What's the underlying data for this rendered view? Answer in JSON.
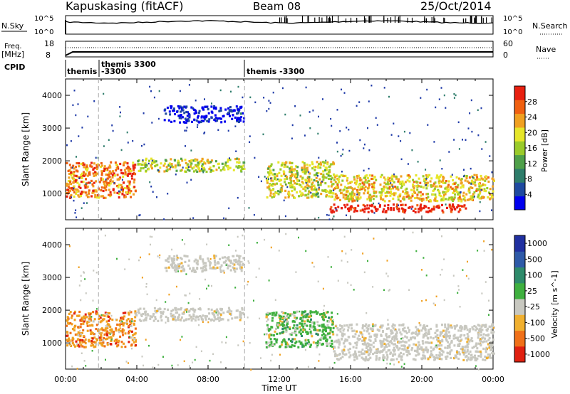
{
  "header": {
    "station": "Kapuskasing (fitACF)",
    "beam": "Beam 08",
    "date": "25/Oct/2014"
  },
  "top_panels": {
    "nsky_label": "N.Sky",
    "nsky_ticks": [
      "10^5",
      "10^0"
    ],
    "nsearch_label": "N.Search",
    "nsearch_ticks": [
      "10^5",
      "10^0"
    ],
    "freq_label": "Freq.",
    "freq_unit": "[MHz]",
    "freq_ticks": [
      "18",
      "8"
    ],
    "nave_label": "Nave",
    "nave_ticks": [
      "60",
      "0"
    ],
    "cpid_label": "CPID",
    "cpid_segments": [
      {
        "start_hour": 0.0,
        "label": "themis"
      },
      {
        "start_hour": 1.85,
        "label": "themis 3300"
      },
      {
        "start_hour": 1.85,
        "label": "-3300"
      },
      {
        "start_hour": 10.05,
        "label": "themis -3300"
      }
    ]
  },
  "chart_data": [
    {
      "type": "heatmap",
      "panel": "power",
      "ylabel": "Slant Range [km]",
      "xlim": [
        0,
        24
      ],
      "ylim": [
        200,
        4500
      ],
      "y_ticks": [
        1000,
        2000,
        3000,
        4000
      ],
      "colorbar": {
        "label": "Power [dB]",
        "ticks": [
          "28",
          "24",
          "20",
          "16",
          "12",
          "8",
          "4"
        ],
        "colors": [
          "#0000ee",
          "#1f4aa0",
          "#2e7d6b",
          "#4fa04a",
          "#9acb2a",
          "#e6e62a",
          "#f0a020",
          "#f06010",
          "#e82010"
        ]
      },
      "regions": [
        {
          "t0": 0.0,
          "t1": 3.9,
          "r0": 900,
          "r1": 2000,
          "level": 0.78
        },
        {
          "t0": 3.9,
          "t1": 10.0,
          "r0": 1700,
          "r1": 2100,
          "level": 0.55
        },
        {
          "t0": 11.2,
          "t1": 15.0,
          "r0": 900,
          "r1": 2000,
          "level": 0.6
        },
        {
          "t0": 14.8,
          "t1": 22.5,
          "r0": 450,
          "r1": 700,
          "level": 0.98
        },
        {
          "t0": 15.0,
          "t1": 24.0,
          "r0": 800,
          "r1": 1600,
          "level": 0.65
        },
        {
          "t0": 5.5,
          "t1": 10.0,
          "r0": 3200,
          "r1": 3700,
          "level": 0.05
        }
      ]
    },
    {
      "type": "heatmap",
      "panel": "velocity",
      "ylabel": "Slant Range [km]",
      "xlabel": "Time UT",
      "x_ticks": [
        "00:00",
        "04:00",
        "08:00",
        "12:00",
        "16:00",
        "20:00",
        "00:00"
      ],
      "xlim": [
        0,
        24
      ],
      "ylim": [
        200,
        4500
      ],
      "y_ticks": [
        1000,
        2000,
        3000,
        4000
      ],
      "colorbar": {
        "label": "Velocity [m s^-1]",
        "ticks": [
          "1000",
          "500",
          "100",
          "25",
          "-25",
          "-100",
          "-500",
          "-1000"
        ],
        "colors": [
          "#2030a0",
          "#2e5aa8",
          "#2e8b6b",
          "#3fb03f",
          "#c8c8c0",
          "#f0b030",
          "#f07018",
          "#e02010"
        ]
      },
      "regions": [
        {
          "t0": 0.0,
          "t1": 3.9,
          "r0": 900,
          "r1": 2000,
          "category": "orange"
        },
        {
          "t0": 3.9,
          "t1": 10.0,
          "r0": 1700,
          "r1": 2100,
          "category": "gray"
        },
        {
          "t0": 11.2,
          "t1": 15.0,
          "r0": 900,
          "r1": 2000,
          "category": "green"
        },
        {
          "t0": 15.0,
          "t1": 24.0,
          "r0": 500,
          "r1": 1600,
          "category": "gray"
        },
        {
          "t0": 5.5,
          "t1": 10.0,
          "r0": 3200,
          "r1": 3700,
          "category": "gray"
        }
      ]
    }
  ]
}
